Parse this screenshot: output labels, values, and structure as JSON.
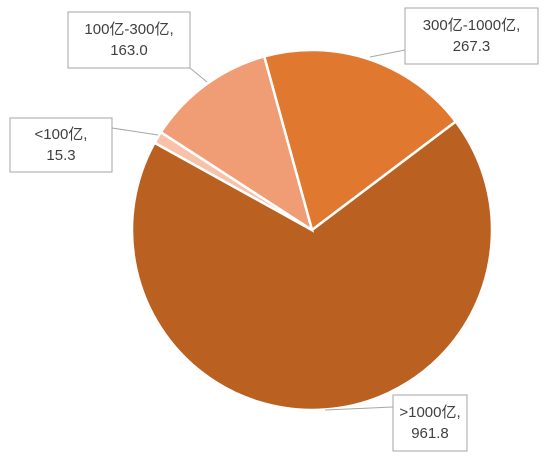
{
  "chart_data": {
    "type": "pie",
    "categories": [
      "300亿-1000亿,",
      ">1000亿,",
      "<100亿,",
      "100亿-300亿,"
    ],
    "values": [
      267.3,
      961.8,
      15.3,
      163.0
    ],
    "value_labels": [
      "267.3",
      "961.8",
      "15.3",
      "163.0"
    ],
    "colors": [
      "#E07830",
      "#BA6020",
      "#F8C2AA",
      "#F09C74"
    ]
  }
}
